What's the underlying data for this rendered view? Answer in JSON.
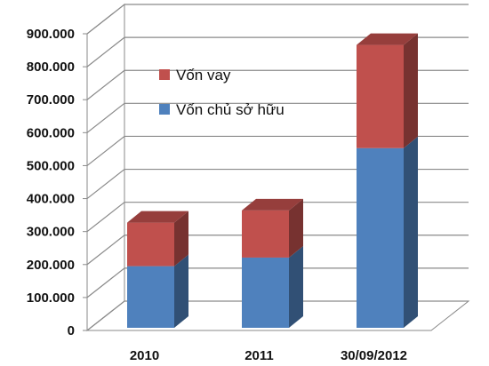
{
  "chart_data": {
    "type": "bar",
    "stacked": true,
    "three_d": true,
    "categories": [
      "2010",
      "2011",
      "30/09/2012"
    ],
    "series": [
      {
        "name": "Vốn chủ sở hữu",
        "values": [
          187000,
          213000,
          545000
        ],
        "color": "#4f81bd"
      },
      {
        "name": "Vốn vay",
        "values": [
          132000,
          143000,
          313000
        ],
        "color": "#c0504d"
      }
    ],
    "ylim": [
      0,
      900000
    ],
    "y_ticks": [
      "0",
      "100.000",
      "200.000",
      "300.000",
      "400.000",
      "500.000",
      "600.000",
      "700.000",
      "800.000",
      "900.000"
    ],
    "legend_position": "upper-left",
    "legend_order": [
      "Vốn vay",
      "Vốn chủ sở hữu"
    ],
    "grid": true
  }
}
